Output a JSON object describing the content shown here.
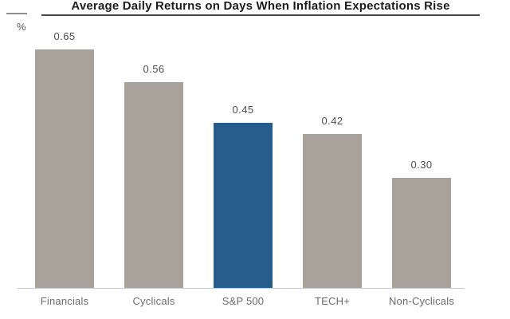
{
  "header": {
    "title": "Average Daily Returns on Days When Inflation Expectations Rise",
    "unit_label": "%"
  },
  "chart_data": {
    "type": "bar",
    "title": "Average Daily Returns on Days When Inflation Expectations Rise",
    "ylabel": "%",
    "xlabel": "",
    "categories": [
      "Financials",
      "Cyclicals",
      "S&P 500",
      "TECH+",
      "Non-Cyclicals"
    ],
    "values": [
      0.65,
      0.56,
      0.45,
      0.42,
      0.3
    ],
    "value_labels": [
      "0.65",
      "0.56",
      "0.45",
      "0.42",
      "0.30"
    ],
    "ylim": [
      0,
      0.75
    ],
    "grid": false,
    "legend": false,
    "highlight_index": 2,
    "highlight_category": "S&P 500",
    "colors": {
      "bar": "#a8a29b",
      "highlight": "#265d8c",
      "value_label_text": "#4d4d4d",
      "category_label_text": "#6b6b6b",
      "axis_line": "#c9c9c9",
      "title_text": "#1c1c1c",
      "title_rule": "#474747"
    }
  }
}
